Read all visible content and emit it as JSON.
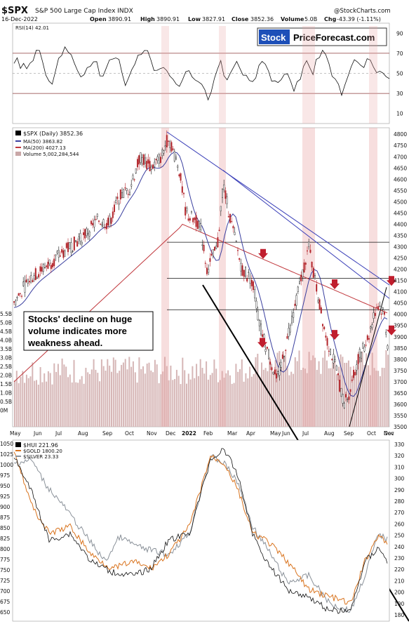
{
  "header": {
    "symbol": "$SPX",
    "name": "S&P 500 Large Cap Index INDX",
    "date": "16-Dec-2022",
    "open_label": "Open",
    "open": "3890.91",
    "high_label": "High",
    "high": "3890.91",
    "low_label": "Low",
    "low": "3827.91",
    "close_label": "Close",
    "close": "3852.36",
    "volume_label": "Volume",
    "volume": "5.0B",
    "chg_label": "Chg",
    "chg": "-43.39 (-1.11%)",
    "watermark": "@StockCharts.com",
    "logo_stock": "Stock",
    "logo_rest": "PriceForecast.com"
  },
  "chart_data": [
    {
      "type": "line",
      "title": "RSI(14) 42.01",
      "ylim": [
        0,
        100
      ],
      "yticks": [
        "90",
        "70",
        "50",
        "30",
        "10"
      ],
      "reference_lines": [
        70,
        30
      ],
      "last_value": 42.01
    },
    {
      "type": "candlestick",
      "title": "$SPX (Daily) 3852.36",
      "legend": [
        {
          "name": "$SPX (Daily) 3852.36",
          "color": "#000000"
        },
        {
          "name": "MA(50) 3863.82",
          "color": "#3a3f9f"
        },
        {
          "name": "MA(200) 4027.13",
          "color": "#c0363b"
        },
        {
          "name": "Volume 5,002,284,544",
          "color": "#c9a7a7"
        }
      ],
      "ylim": [
        3500,
        4810
      ],
      "yticks": [
        "4800",
        "4750",
        "4700",
        "4650",
        "4600",
        "4550",
        "4500",
        "4450",
        "4400",
        "4350",
        "4300",
        "4250",
        "4200",
        "4150",
        "4100",
        "4050",
        "4000",
        "3950",
        "3900",
        "3850",
        "3800",
        "3750",
        "3700",
        "3650",
        "3600",
        "3550",
        "3500"
      ],
      "volume_ticks": [
        "5.5B",
        "5.0B",
        "4.5B",
        "4.0B",
        "3.5B",
        "3.0B",
        "2.5B",
        "2.0B",
        "1.5B",
        "1.0B",
        "0.5B",
        "0M"
      ],
      "x_labels": [
        "May",
        "Jun",
        "Jul",
        "Aug",
        "Sep",
        "Oct",
        "Nov",
        "Dec",
        "2022",
        "Feb",
        "Mar",
        "Apr",
        "May",
        "Jun",
        "Jul",
        "Aug",
        "Sep",
        "Oct",
        "Nov",
        "Dec"
      ],
      "last_close": 3852.36,
      "ma50_last": 3863.82,
      "ma200_last": 4027.13,
      "horizontal_levels": [
        4320,
        4160,
        4020
      ],
      "annotation": "Stocks' decline on huge volume indicates more weakness ahead.",
      "red_arrows": 6
    },
    {
      "type": "line",
      "legend": [
        {
          "name": "$HUI 221.96",
          "color": "#000000"
        },
        {
          "name": "$GOLD 1800.20",
          "color": "#d9741f"
        },
        {
          "name": "$SILVER 23.33",
          "color": "#8a9199"
        }
      ],
      "left_ticks": [
        "1050",
        "1025",
        "1000",
        "975",
        "950",
        "925",
        "900",
        "875",
        "850",
        "825",
        "800",
        "775",
        "750",
        "725",
        "700",
        "675",
        "650"
      ],
      "right_ticks": [
        "330",
        "320",
        "310",
        "300",
        "290",
        "280",
        "270",
        "260",
        "250",
        "240",
        "230",
        "220",
        "210",
        "200",
        "190",
        "180"
      ],
      "series": [
        {
          "name": "$HUI",
          "last": 221.96
        },
        {
          "name": "$GOLD",
          "last": 1800.2
        },
        {
          "name": "$SILVER",
          "last": 23.33
        }
      ]
    }
  ]
}
